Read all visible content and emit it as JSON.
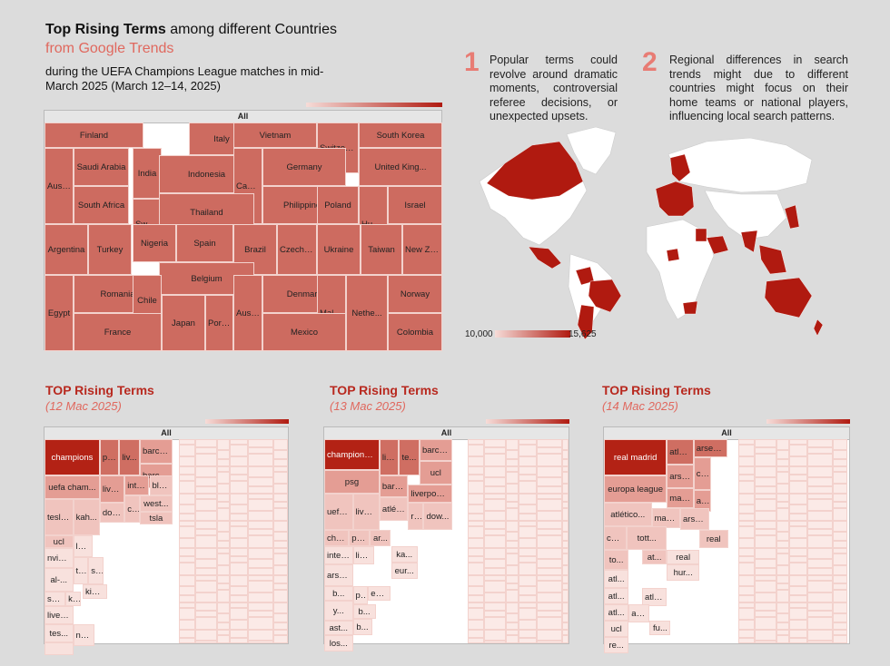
{
  "header": {
    "title_bold": "Top Rising Terms",
    "title_rest": " among different Countries",
    "subtitle": "from Google Trends",
    "description": "during the UEFA Champions League matches in mid-March 2025 (March 12–14, 2025)"
  },
  "notes": [
    {
      "num": "1",
      "text": "Popular terms could revolve around dramatic moments, controversial referee decisions, or unexpected upsets."
    },
    {
      "num": "2",
      "text": "Regional differences in search trends might due to different countries might focus on their home teams or national players, influencing local search patterns."
    }
  ],
  "colors": {
    "accent": "#b8291f",
    "light": "#e0685e",
    "cell": "#cd6b60",
    "map_high": "#b01a10",
    "map_low": "#f6dcd8"
  },
  "map": {
    "legend_min": "10,000",
    "legend_max": "15,625"
  },
  "chart_data": [
    {
      "type": "treemap",
      "root_label": "All",
      "categories": [
        "Finland",
        "India",
        "Italy",
        "Vietnam",
        "Switzerl...",
        "South Korea",
        "Austr...",
        "Saudi Arabia",
        "Indonesia",
        "Cana...",
        "Germany",
        "United King...",
        "Sweden",
        "Hung...",
        "South Africa",
        "Thailand",
        "Philippines",
        "Poland",
        "Israel",
        "Argentina",
        "Turkey",
        "Nigeria",
        "Spain",
        "Brazil",
        "Czech Re...",
        "Ukraine",
        "Taiwan",
        "New Ze...",
        "Belgium",
        "Romania",
        "Chile",
        "Denmark",
        "Norway",
        "Egypt",
        "Japan",
        "Portugal",
        "Austria",
        "Malay...",
        "Nethe...",
        "France",
        "Mexico",
        "Colombia"
      ]
    },
    {
      "type": "treemap",
      "title": "TOP Rising Terms",
      "subtitle": "(12 Mac 2025)",
      "root_label": "All",
      "categories": [
        "champions",
        "psg",
        "liv...",
        "barcel...",
        "barcel...",
        "uefa cham...",
        "liver...",
        "inter...",
        "blo...",
        "west...",
        "tesla...",
        "kah...",
        "dow...",
        "ch...",
        "tsla",
        "ucl",
        "le...",
        "nvidia...",
        "al-...",
        "ts...",
        "s&...",
        "kim...",
        "sp...",
        "ki...",
        "liverp...",
        "tes...",
        "na..."
      ]
    },
    {
      "type": "treemap",
      "title": "TOP Rising Terms",
      "subtitle": "(13 Mac 2025)",
      "root_label": "All",
      "categories": [
        "champions l...",
        "liv...",
        "te...",
        "barcel...",
        "psg",
        "ucl",
        "barc...",
        "liverpool...",
        "uefa...",
        "liver...",
        "re...",
        "atlét...",
        "dow...",
        "cha...",
        "ps...",
        "ar...",
        "ka...",
        "inter...",
        "liga...",
        "eur...",
        "arse...",
        "b...",
        "ps...",
        "eur...",
        "b...",
        "y...",
        "ast...",
        "b...",
        "los...",
        "b..."
      ]
    },
    {
      "type": "treemap",
      "title": "TOP Rising Terms",
      "subtitle": "(14 Mac 2025)",
      "root_label": "All",
      "categories": [
        "real madrid",
        "atléti...",
        "arsena...",
        "arse...",
        "co...",
        "europa league",
        "man...",
        "as...",
        "atlético...",
        "manc...",
        "arse...",
        "champi...",
        "tott...",
        "real",
        "to...",
        "at...",
        "real",
        "atl...",
        "hur...",
        "atl...",
        "atl...",
        "atlé...",
        "atl...",
        "ucl",
        "fu...",
        "re..."
      ]
    }
  ]
}
